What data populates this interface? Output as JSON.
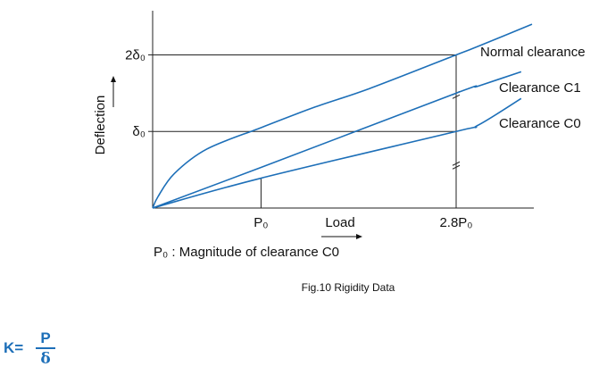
{
  "chart_data": {
    "type": "line",
    "xlabel": "Load",
    "ylabel": "Deflection",
    "x_ticks": [
      {
        "value": 1,
        "label": "P₀"
      },
      {
        "value": 2.8,
        "label": "2.8P₀"
      }
    ],
    "y_ticks": [
      {
        "value": 1,
        "label": "δ₀"
      },
      {
        "value": 2,
        "label": "2δ₀"
      }
    ],
    "xlim": [
      0,
      3.5
    ],
    "ylim": [
      0,
      2.6
    ],
    "series": [
      {
        "name": "Normal clearance",
        "color": "#1d6fb8",
        "x": [
          0,
          0.05,
          0.2,
          0.5,
          1.0,
          1.5,
          2.0,
          2.8,
          3.0,
          3.5
        ],
        "y": [
          0,
          0.15,
          0.45,
          0.77,
          1.05,
          1.32,
          1.56,
          2.0,
          2.11,
          2.4
        ]
      },
      {
        "name": "Clearance C1",
        "color": "#1d6fb8",
        "x": [
          0,
          1.0,
          2.8,
          3.0,
          3.4
        ],
        "y": [
          0,
          0.53,
          1.5,
          1.59,
          1.78
        ]
      },
      {
        "name": "Clearance C0",
        "color": "#1d6fb8",
        "x": [
          0,
          1.0,
          2.8,
          3.0,
          3.4
        ],
        "y": [
          0,
          0.39,
          1.0,
          1.08,
          1.43
        ]
      }
    ],
    "grid": false
  },
  "footnote": "P₀ : Magnitude of clearance C0",
  "caption": "Fig.10 Rigidity Data",
  "formula": {
    "lhs": "K=",
    "numerator": "P",
    "denominator": "δ"
  }
}
